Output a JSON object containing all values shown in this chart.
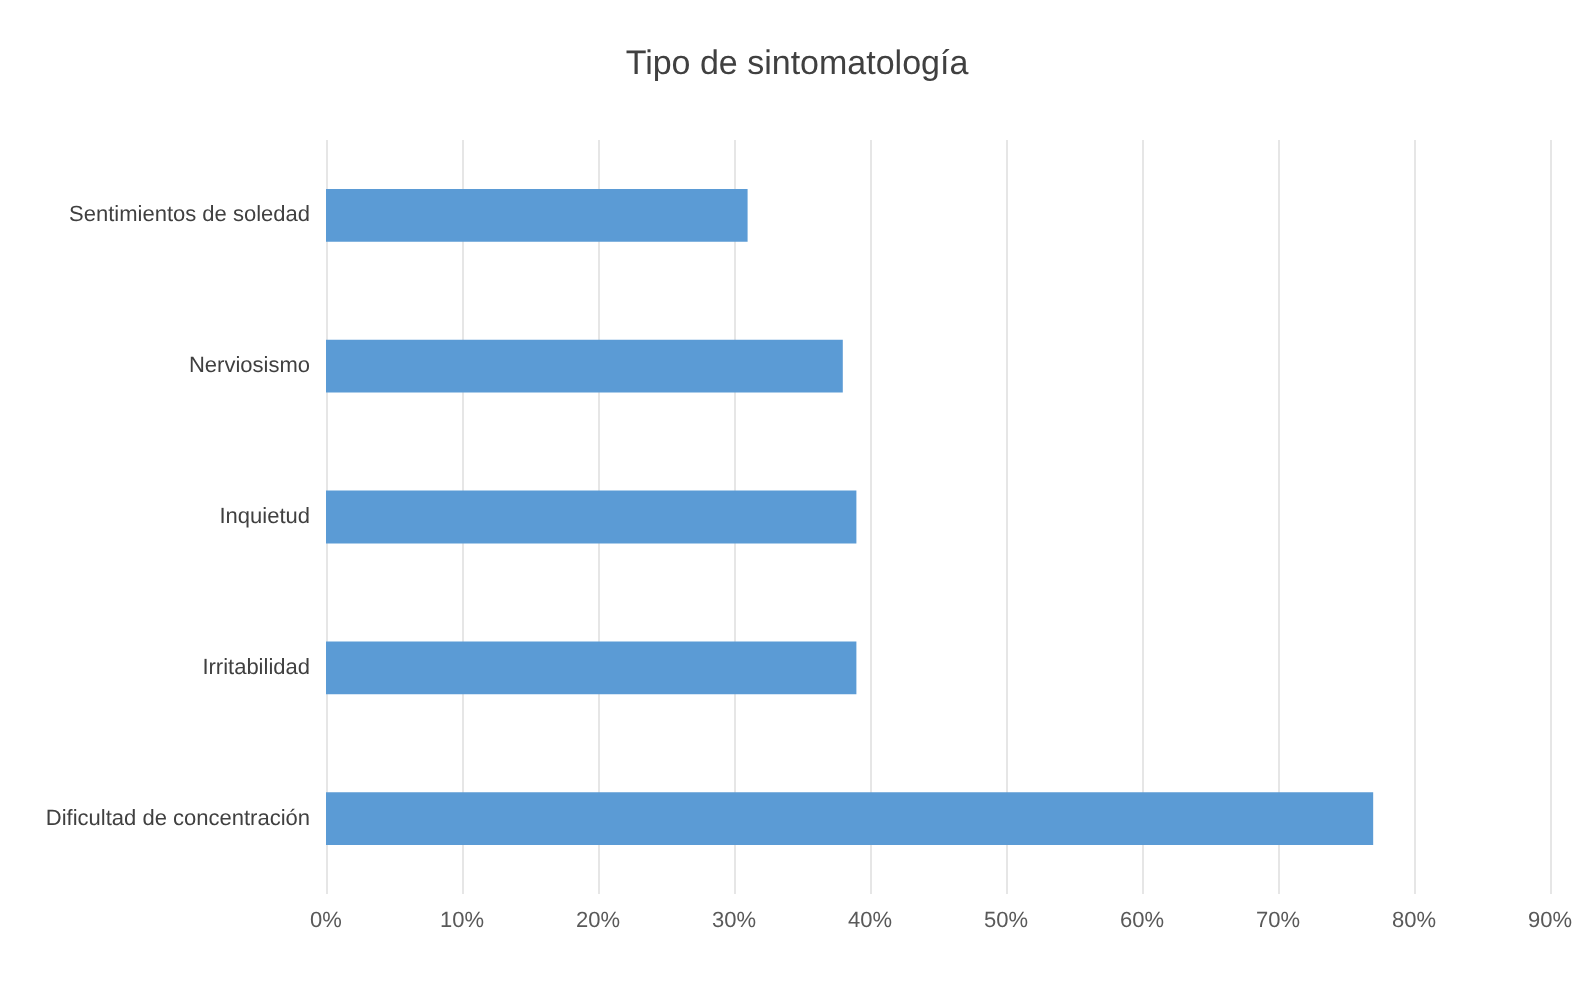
{
  "chart_data": {
    "type": "bar",
    "orientation": "horizontal",
    "title": "Tipo de sintomatología",
    "categories": [
      "Sentimientos de soledad",
      "Nerviosismo",
      "Inquietud",
      "Irritabilidad",
      "Dificultad de concentración"
    ],
    "values": [
      31,
      38,
      39,
      39,
      77
    ],
    "color": "#5b9bd5",
    "xlim": [
      0,
      90
    ],
    "xticks": [
      {
        "value": 0,
        "label": "0%"
      },
      {
        "value": 10,
        "label": "10%"
      },
      {
        "value": 20,
        "label": "20%"
      },
      {
        "value": 30,
        "label": "30%"
      },
      {
        "value": 40,
        "label": "40%"
      },
      {
        "value": 50,
        "label": "50%"
      },
      {
        "value": 60,
        "label": "60%"
      },
      {
        "value": 70,
        "label": "70%"
      },
      {
        "value": 80,
        "label": "80%"
      },
      {
        "value": 90,
        "label": "90%"
      }
    ],
    "grid": "x"
  }
}
